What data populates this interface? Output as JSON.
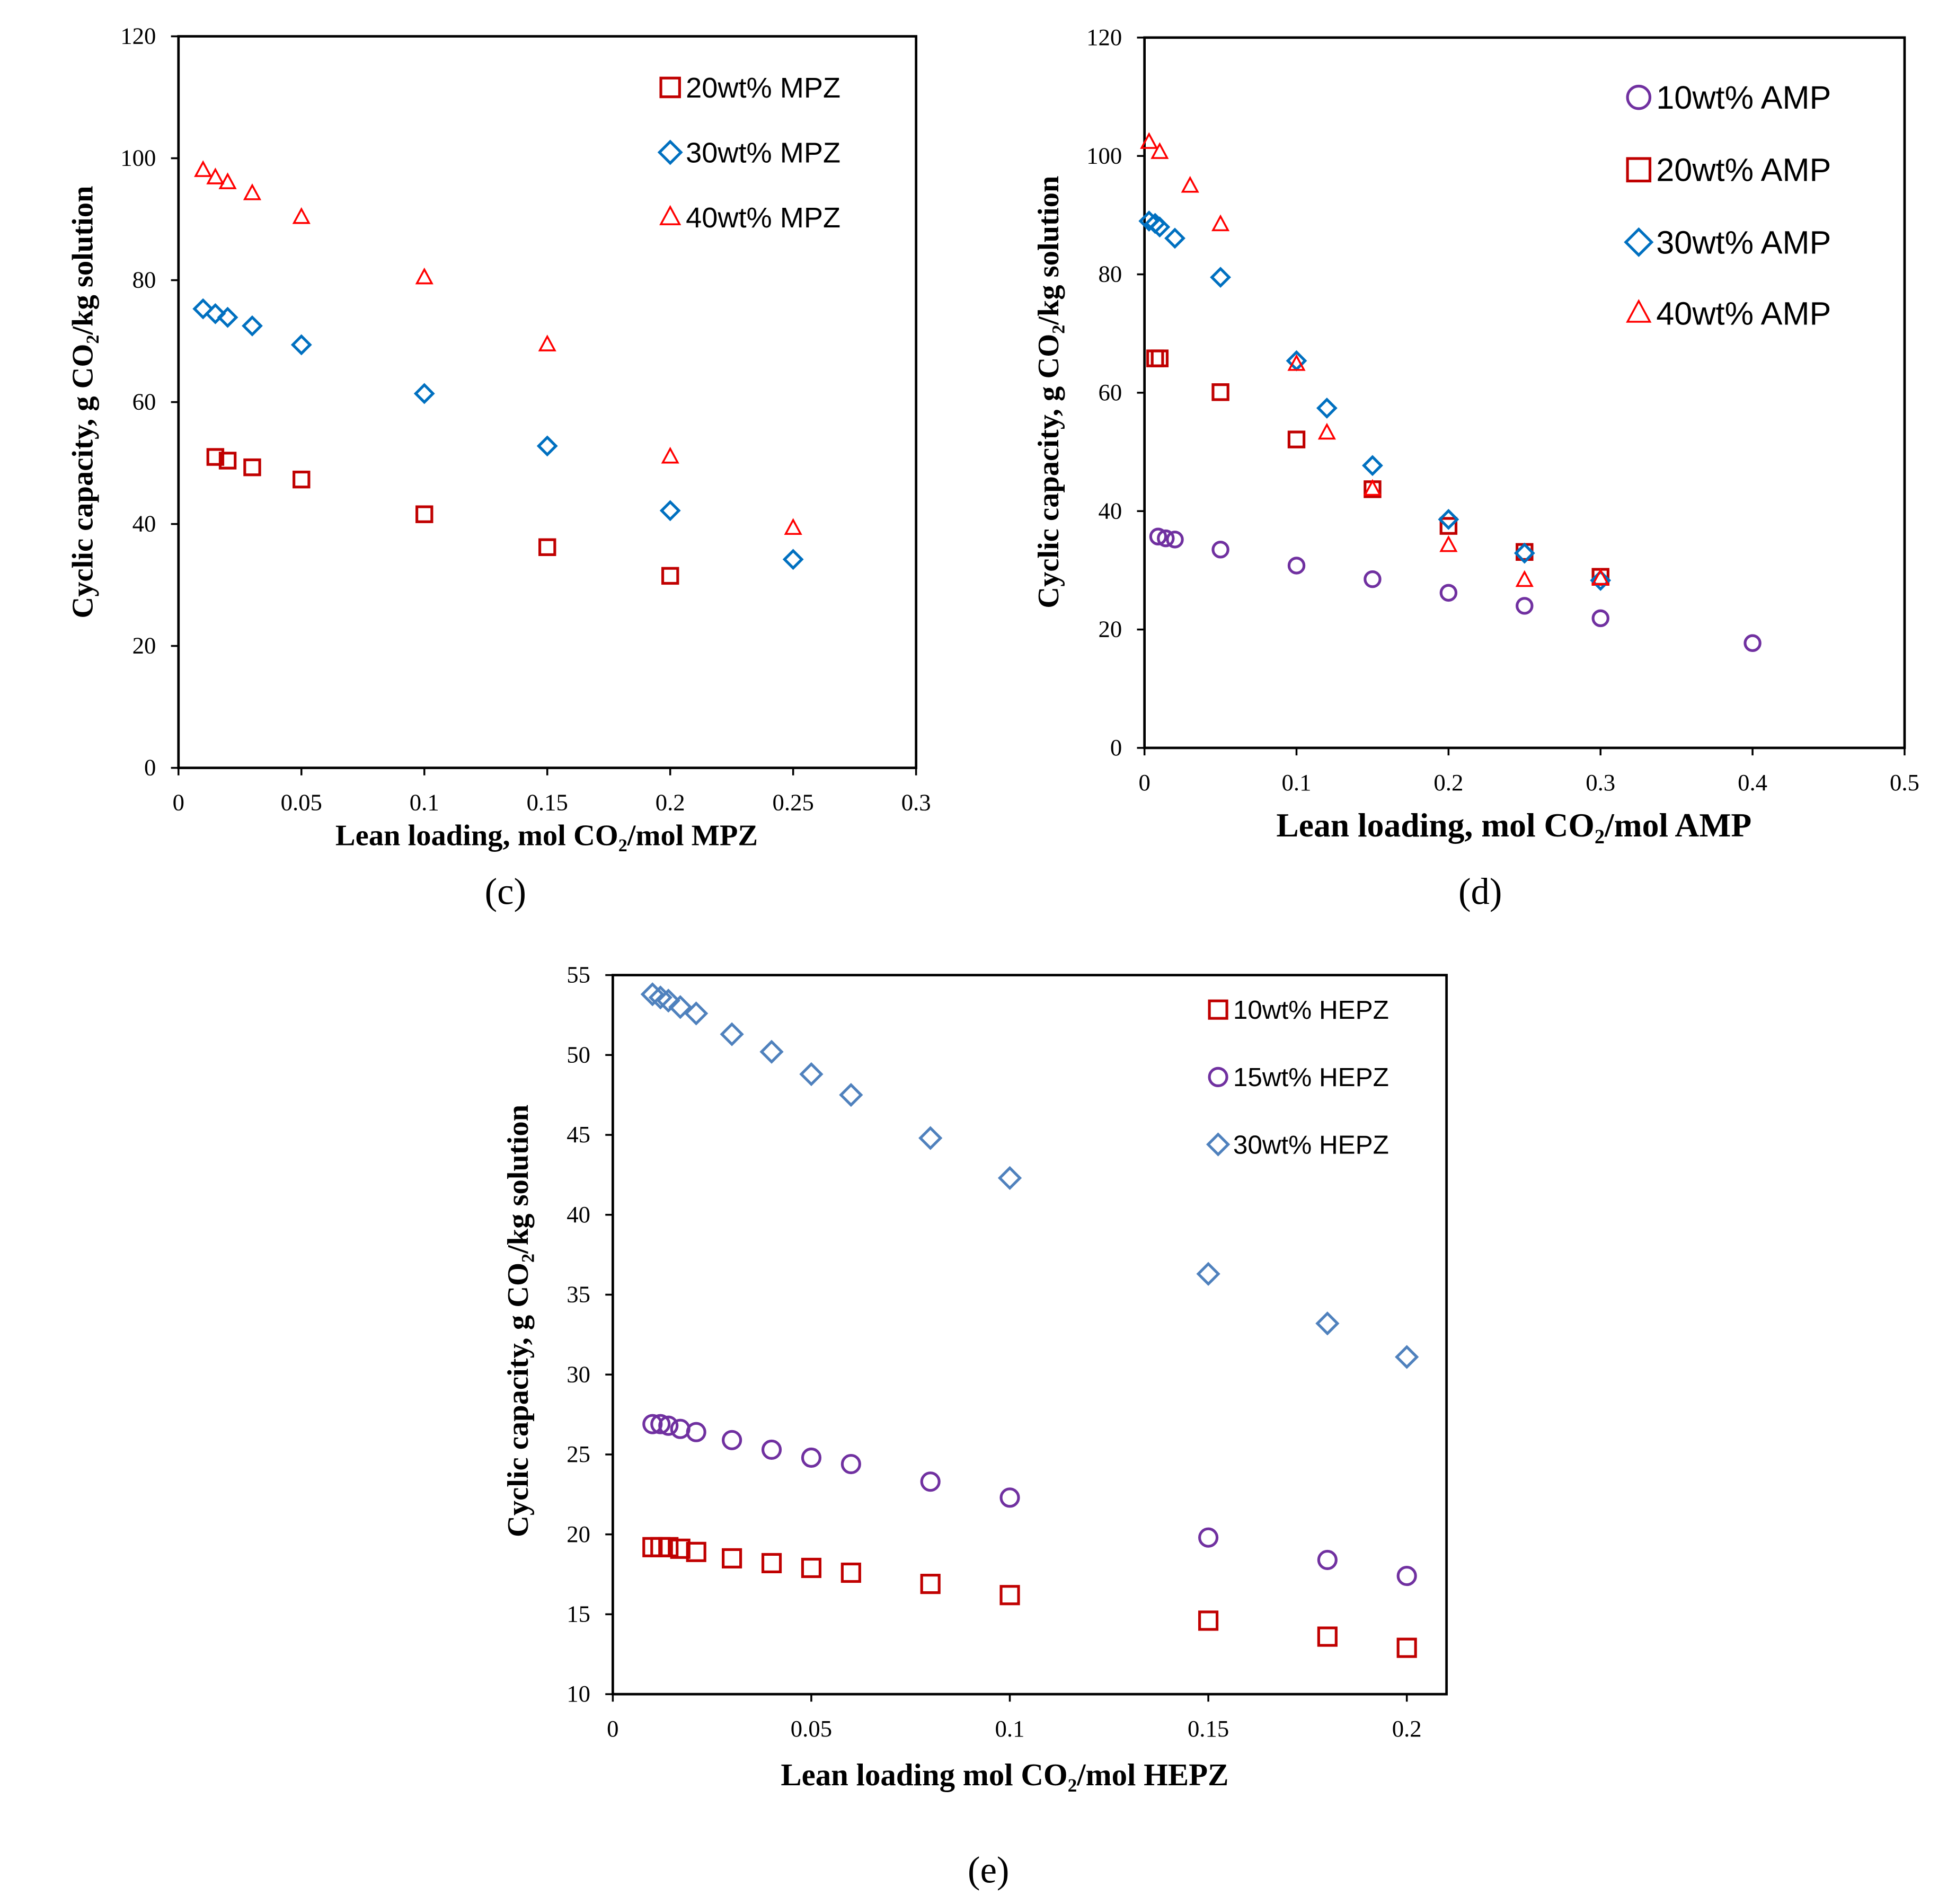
{
  "chart_data": [
    {
      "id": "c",
      "type": "scatter",
      "panel_label": "(c)",
      "xlabel": "Lean loading, mol CO₂/mol MPZ",
      "ylabel": "Cyclic capacity, g CO₂/kg solution",
      "xlim": [
        0,
        0.3
      ],
      "ylim": [
        0,
        120
      ],
      "xticks": [
        0,
        0.05,
        0.1,
        0.15,
        0.2,
        0.25,
        0.3
      ],
      "xtick_labels": [
        "0",
        "0.05",
        "0.1",
        "0.15",
        "0.2",
        "0.25",
        "0.3"
      ],
      "yticks": [
        0,
        20,
        40,
        60,
        80,
        100,
        120
      ],
      "ytick_labels": [
        "0",
        "20",
        "40",
        "60",
        "80",
        "100",
        "120"
      ],
      "grid": false,
      "legend_position": "top-right",
      "series": [
        {
          "name": "20wt% MPZ",
          "marker": "square",
          "color": "#c00000",
          "x": [
            0.015,
            0.02,
            0.03,
            0.05,
            0.1,
            0.15,
            0.2
          ],
          "y": [
            51.0,
            50.4,
            49.3,
            47.3,
            41.6,
            36.2,
            31.5
          ]
        },
        {
          "name": "30wt% MPZ",
          "marker": "diamond",
          "color": "#0070c0",
          "x": [
            0.01,
            0.015,
            0.02,
            0.03,
            0.05,
            0.1,
            0.15,
            0.2,
            0.25
          ],
          "y": [
            75.3,
            74.5,
            73.9,
            72.5,
            69.4,
            61.4,
            52.8,
            42.2,
            34.2
          ]
        },
        {
          "name": "40wt% MPZ",
          "marker": "triangle",
          "color": "#ff0000",
          "x": [
            0.01,
            0.015,
            0.02,
            0.03,
            0.05,
            0.1,
            0.15,
            0.2,
            0.25
          ],
          "y": [
            98.0,
            96.8,
            96.0,
            94.2,
            90.3,
            80.4,
            69.4,
            51.0,
            39.3
          ]
        }
      ]
    },
    {
      "id": "d",
      "type": "scatter",
      "panel_label": "(d)",
      "xlabel": "Lean loading, mol CO₂/mol AMP",
      "ylabel": "Cyclic capacity, g CO₂/kg solution",
      "xlim": [
        0,
        0.5
      ],
      "ylim": [
        0,
        120
      ],
      "xticks": [
        0,
        0.1,
        0.2,
        0.3,
        0.4,
        0.5
      ],
      "xtick_labels": [
        "0",
        "0.1",
        "0.2",
        "0.3",
        "0.4",
        "0.5"
      ],
      "yticks": [
        0,
        20,
        40,
        60,
        80,
        100,
        120
      ],
      "ytick_labels": [
        "0",
        "20",
        "40",
        "60",
        "80",
        "100",
        "120"
      ],
      "grid": false,
      "legend_position": "top-right",
      "series": [
        {
          "name": "10wt% AMP",
          "marker": "circle",
          "color": "#7030a0",
          "x": [
            0.009,
            0.014,
            0.02,
            0.05,
            0.1,
            0.15,
            0.2,
            0.25,
            0.3,
            0.4
          ],
          "y": [
            35.7,
            35.4,
            35.2,
            33.5,
            30.8,
            28.5,
            26.2,
            24.0,
            21.9,
            17.7
          ]
        },
        {
          "name": "20wt% AMP",
          "marker": "square",
          "color": "#c00000",
          "x": [
            0.007,
            0.01,
            0.05,
            0.1,
            0.15,
            0.2,
            0.25,
            0.3
          ],
          "y": [
            65.8,
            65.8,
            60.1,
            52.1,
            43.7,
            37.5,
            33.1,
            28.9
          ]
        },
        {
          "name": "30wt% AMP",
          "marker": "diamond",
          "color": "#0070c0",
          "x": [
            0.003,
            0.007,
            0.01,
            0.02,
            0.05,
            0.1,
            0.12,
            0.15,
            0.2,
            0.25,
            0.3
          ],
          "y": [
            89.0,
            88.6,
            88.0,
            86.1,
            79.5,
            65.4,
            57.4,
            47.7,
            38.6,
            32.9,
            28.3
          ]
        },
        {
          "name": "40wt% AMP",
          "marker": "triangle",
          "color": "#ff0000",
          "x": [
            0.003,
            0.01,
            0.03,
            0.05,
            0.1,
            0.12,
            0.15,
            0.2,
            0.25,
            0.3
          ],
          "y": [
            102.3,
            100.6,
            94.9,
            88.4,
            64.8,
            53.2,
            43.7,
            34.2,
            28.3,
            28.6
          ]
        }
      ]
    },
    {
      "id": "e",
      "type": "scatter",
      "panel_label": "(e)",
      "xlabel": "Lean loading mol CO₂/mol HEPZ",
      "ylabel": "Cyclic capacity,  g CO₂/kg solution",
      "xlim": [
        0,
        0.21
      ],
      "ylim": [
        10,
        55
      ],
      "xticks": [
        0,
        0.05,
        0.1,
        0.15,
        0.2
      ],
      "xtick_labels": [
        "0",
        "0.05",
        "0.1",
        "0.15",
        "0.2"
      ],
      "yticks": [
        10,
        15,
        20,
        25,
        30,
        35,
        40,
        45,
        50,
        55
      ],
      "ytick_labels": [
        "10",
        "15",
        "20",
        "25",
        "30",
        "35",
        "40",
        "45",
        "50",
        "55"
      ],
      "grid": false,
      "legend_position": "top-right",
      "series": [
        {
          "name": "10wt% HEPZ",
          "marker": "square",
          "color": "#c00000",
          "x": [
            0.01,
            0.012,
            0.014,
            0.017,
            0.021,
            0.03,
            0.04,
            0.05,
            0.06,
            0.08,
            0.1,
            0.15,
            0.18,
            0.2
          ],
          "y": [
            19.2,
            19.2,
            19.2,
            19.1,
            18.9,
            18.5,
            18.2,
            17.9,
            17.6,
            16.9,
            16.2,
            14.6,
            13.6,
            12.9
          ]
        },
        {
          "name": "15wt% HEPZ",
          "marker": "circle",
          "color": "#7030a0",
          "x": [
            0.01,
            0.012,
            0.014,
            0.017,
            0.021,
            0.03,
            0.04,
            0.05,
            0.06,
            0.08,
            0.1,
            0.15,
            0.18,
            0.2
          ],
          "y": [
            26.9,
            26.9,
            26.8,
            26.6,
            26.4,
            25.9,
            25.3,
            24.8,
            24.4,
            23.3,
            22.3,
            19.8,
            18.4,
            17.4
          ]
        },
        {
          "name": "30wt% HEPZ",
          "marker": "diamond",
          "color": "#4f81bd",
          "x": [
            0.01,
            0.012,
            0.014,
            0.017,
            0.021,
            0.03,
            0.04,
            0.05,
            0.06,
            0.08,
            0.1,
            0.15,
            0.18,
            0.2
          ],
          "y": [
            53.8,
            53.6,
            53.4,
            53.0,
            52.6,
            51.3,
            50.2,
            48.8,
            47.5,
            44.8,
            42.3,
            36.3,
            33.2,
            31.1
          ]
        }
      ]
    }
  ]
}
